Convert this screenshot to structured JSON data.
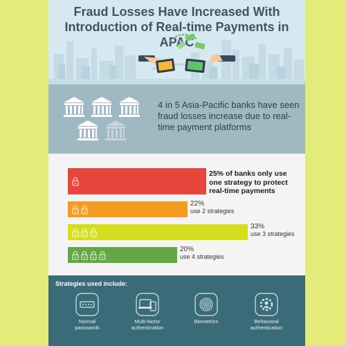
{
  "header": {
    "title_line1": "Fraud Losses Have Increased With",
    "title_line2": "Introduction of Real-time Payments in APAC"
  },
  "banner": {
    "text": "4 in 5 Asia-Pacific banks have seen fraud losses increase due to real-time payment platforms"
  },
  "bars": [
    {
      "share": 0.25,
      "color": "#e8453c",
      "locks": 1,
      "pct": "",
      "text": "25% of banks only use one strategy to protect real-time payments"
    },
    {
      "share": 0.22,
      "color": "#f39c1f",
      "locks": 2,
      "pct": "22%",
      "text": "use 2 strategies"
    },
    {
      "share": 0.33,
      "color": "#d4e01f",
      "locks": 3,
      "pct": "33%",
      "text": "use 3 strategies"
    },
    {
      "share": 0.2,
      "color": "#64a843",
      "locks": 4,
      "pct": "20%",
      "text": "use 4 strategies"
    }
  ],
  "strategies": {
    "title": "Strategies used include:",
    "items": [
      {
        "icon": "password-field-icon",
        "label_line1": "Normal",
        "label_line2": "passwords"
      },
      {
        "icon": "multi-factor-devices-icon",
        "label_line1": "Multi-factor",
        "label_line2": "authentication"
      },
      {
        "icon": "fingerprint-icon",
        "label_line1": "Biometrics",
        "label_line2": ""
      },
      {
        "icon": "gear-person-icon",
        "label_line1": "Behavioral",
        "label_line2": "authentication"
      }
    ]
  },
  "colors": {
    "title": "#3d5563",
    "banner": "#9fb9c3",
    "strategies": "#3a6b78"
  }
}
